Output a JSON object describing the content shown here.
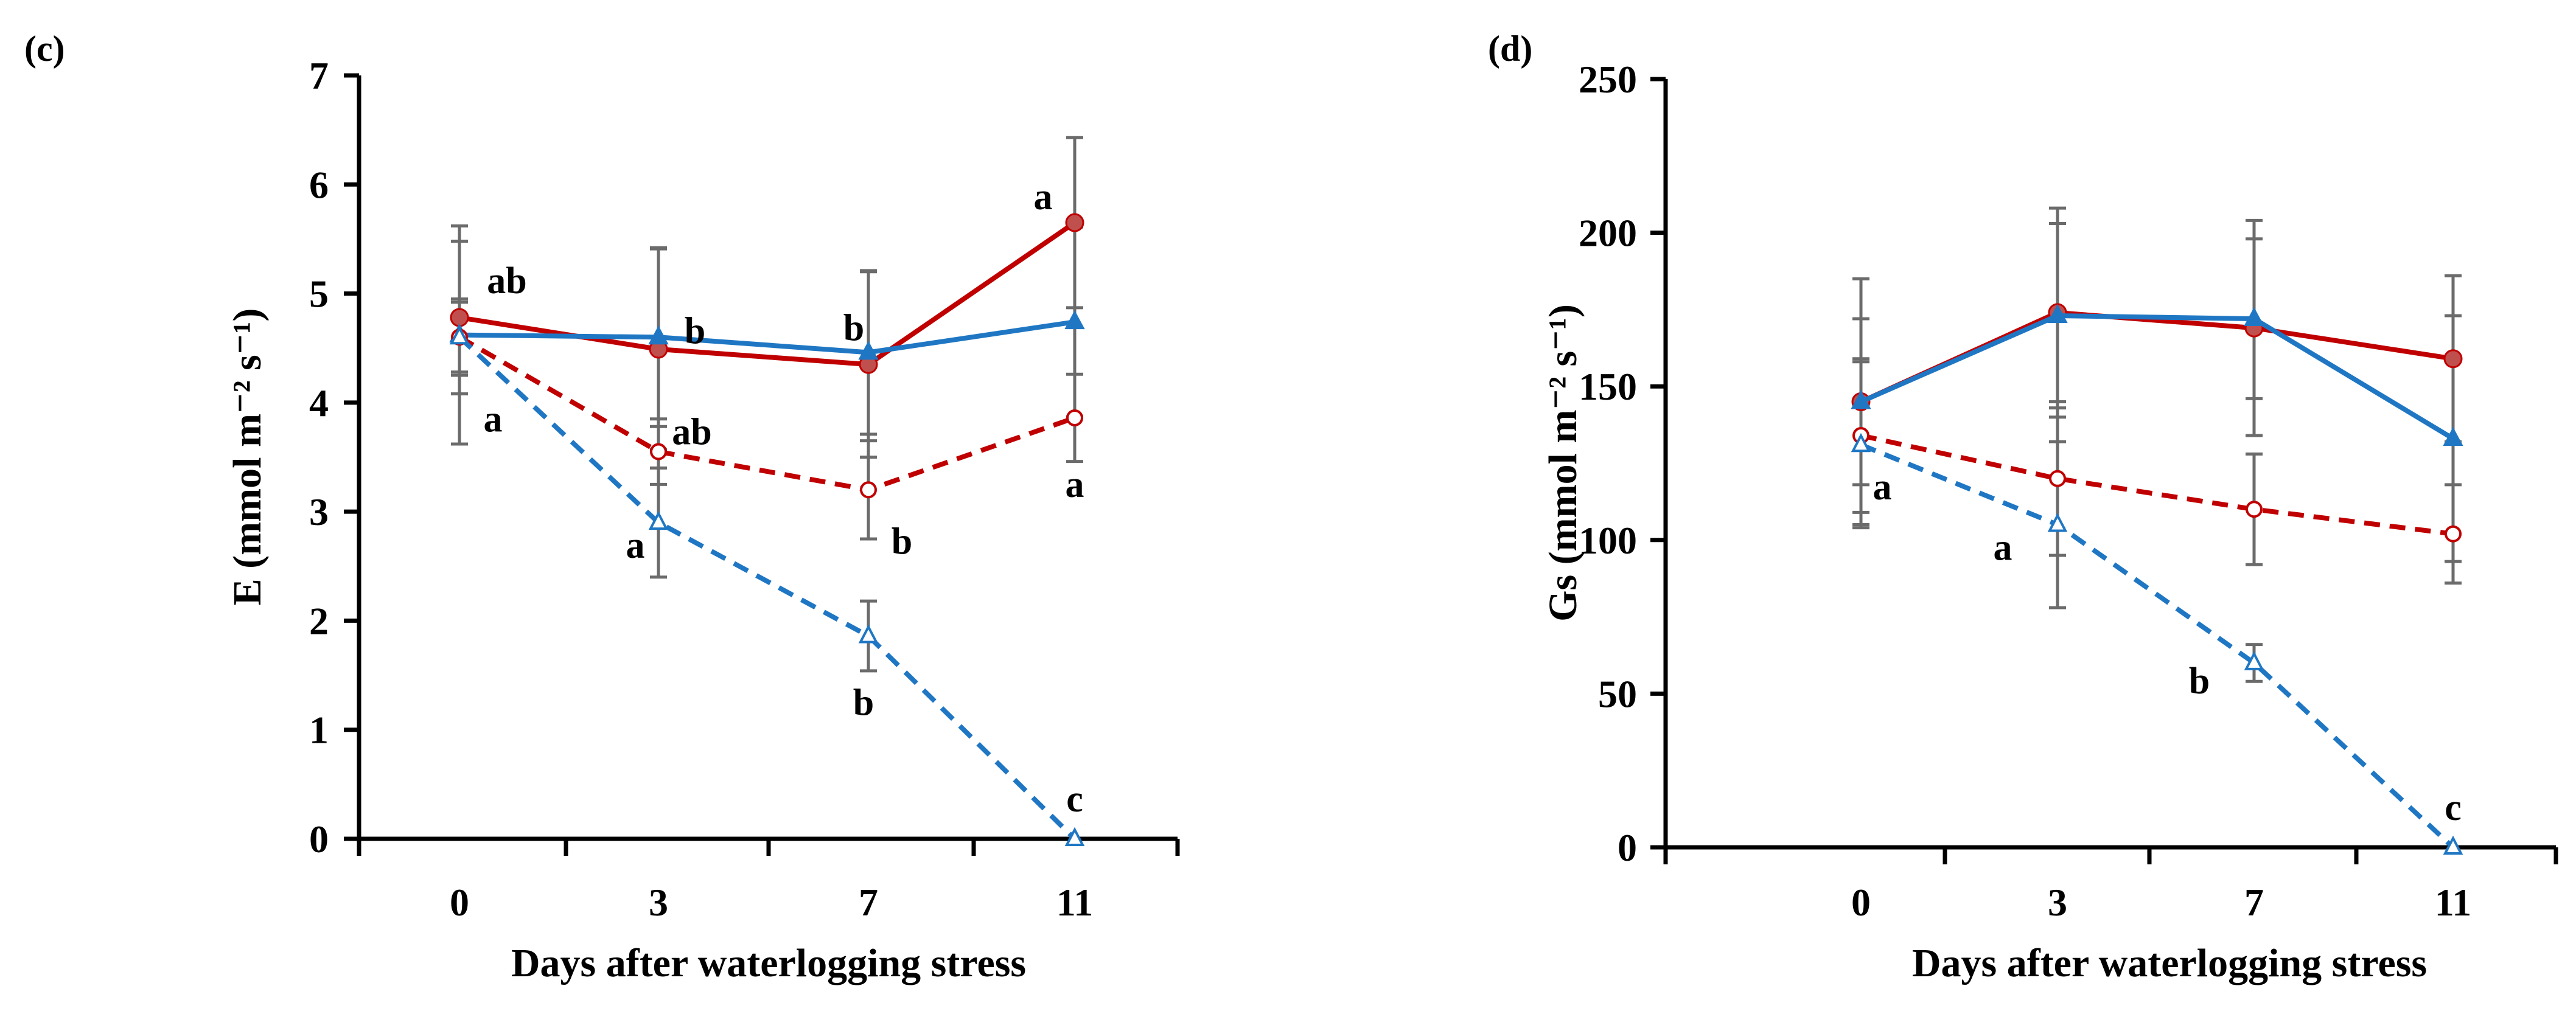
{
  "chart_data": [
    {
      "type": "line",
      "panel_label": "(c)",
      "xlabel": "Days after waterlogging stress",
      "ylabel": "E (mmol m⁻² s⁻¹)",
      "categories": [
        "0",
        "3",
        "7",
        "11"
      ],
      "ylim": [
        0,
        7
      ],
      "yticks": [
        "0",
        "1",
        "2",
        "3",
        "4",
        "5",
        "6",
        "7"
      ],
      "grid": false,
      "legend": "none",
      "series": [
        {
          "name": "red-solid",
          "color": "#c00000",
          "marker_color": "#c0504d",
          "line": "solid",
          "marker": "filled-circle",
          "values": [
            4.78,
            4.49,
            4.35,
            5.65
          ],
          "errors": [
            0.7,
            0.92,
            0.85,
            0.78
          ],
          "labels": [
            "ab",
            "",
            "",
            "a"
          ]
        },
        {
          "name": "blue-solid",
          "color": "#1f77c4",
          "marker_color": "#1f77c4",
          "line": "solid",
          "marker": "filled-triangle",
          "values": [
            4.62,
            4.6,
            4.46,
            4.74
          ],
          "errors": [
            1.0,
            0.82,
            0.75,
            0.87
          ],
          "labels": [
            "",
            "b",
            "b",
            ""
          ]
        },
        {
          "name": "red-dashed",
          "color": "#c00000",
          "marker_color": "#c00000",
          "line": "dashed",
          "marker": "open-circle",
          "values": [
            4.6,
            3.55,
            3.2,
            3.86
          ],
          "errors": [
            0.32,
            0.3,
            0.45,
            0.4
          ],
          "labels": [
            "",
            "ab",
            "b",
            "a"
          ]
        },
        {
          "name": "blue-dashed",
          "color": "#1f77c4",
          "marker_color": "#1f77c4",
          "line": "dashed",
          "marker": "open-triangle",
          "values": [
            4.6,
            2.9,
            1.86,
            0.0
          ],
          "errors": [
            0.35,
            0.5,
            0.32,
            0.0
          ],
          "labels": [
            "a",
            "a",
            "b",
            "c"
          ]
        }
      ]
    },
    {
      "type": "line",
      "panel_label": "(d)",
      "xlabel": "Days after waterlogging stress",
      "ylabel": "Gs (mmol m⁻² s⁻¹)",
      "categories": [
        "0",
        "3",
        "7",
        "11"
      ],
      "ylim": [
        0,
        250
      ],
      "yticks": [
        "0",
        "50",
        "100",
        "150",
        "200",
        "250"
      ],
      "grid": false,
      "legend": "none",
      "series": [
        {
          "name": "red-solid",
          "color": "#c00000",
          "marker_color": "#c0504d",
          "line": "solid",
          "marker": "filled-circle",
          "values": [
            145,
            174,
            169,
            159
          ],
          "errors": [
            40,
            34,
            35,
            27
          ],
          "labels": [
            "",
            "",
            "",
            ""
          ]
        },
        {
          "name": "blue-solid",
          "color": "#1f77c4",
          "marker_color": "#1f77c4",
          "line": "solid",
          "marker": "filled-triangle",
          "values": [
            145,
            173,
            172,
            133
          ],
          "errors": [
            27,
            30,
            26,
            40
          ],
          "labels": [
            "",
            "",
            "",
            ""
          ]
        },
        {
          "name": "red-dashed",
          "color": "#c00000",
          "marker_color": "#c00000",
          "line": "dashed",
          "marker": "open-circle",
          "values": [
            134,
            120,
            110,
            102
          ],
          "errors": [
            25,
            25,
            18,
            16
          ],
          "labels": [
            "",
            "",
            "",
            ""
          ]
        },
        {
          "name": "blue-dashed",
          "color": "#1f77c4",
          "marker_color": "#1f77c4",
          "line": "dashed",
          "marker": "open-triangle",
          "values": [
            131,
            105,
            60,
            0
          ],
          "errors": [
            27,
            27,
            6,
            0
          ],
          "labels": [
            "a",
            "a",
            "b",
            "c"
          ]
        }
      ]
    }
  ]
}
